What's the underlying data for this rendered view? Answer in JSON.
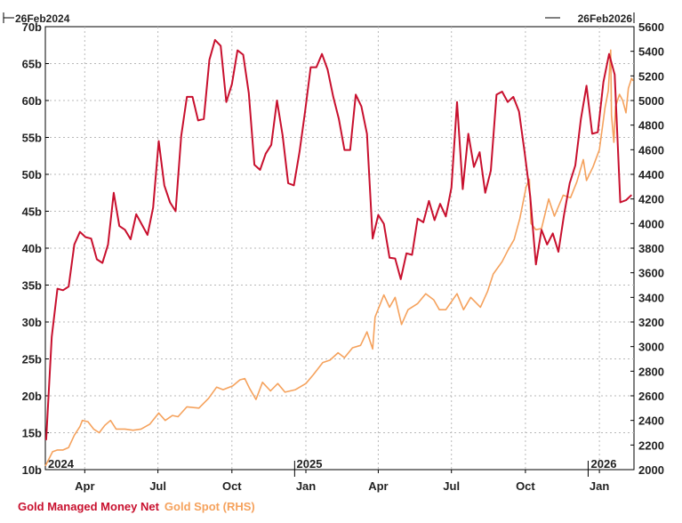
{
  "chart_data": {
    "type": "line",
    "date_range": {
      "start": "26Feb2024",
      "end": "26Feb2026"
    },
    "x_axis": {
      "month_labels": [
        "Apr",
        "Jul",
        "Oct",
        "Jan",
        "Apr",
        "Jul",
        "Oct",
        "Jan"
      ],
      "year_labels": [
        "2024",
        "2025",
        "2026"
      ]
    },
    "y_left": {
      "ticks": [
        "10b",
        "15b",
        "20b",
        "25b",
        "30b",
        "35b",
        "40b",
        "45b",
        "50b",
        "55b",
        "60b",
        "65b",
        "70b"
      ],
      "range": [
        10,
        70
      ],
      "unit": "b"
    },
    "y_right": {
      "ticks": [
        "2000",
        "2200",
        "2400",
        "2600",
        "2800",
        "3000",
        "3200",
        "3400",
        "3600",
        "3800",
        "4000",
        "4200",
        "4400",
        "4600",
        "4800",
        "5000",
        "5200",
        "5400",
        "5600"
      ],
      "range": [
        2000,
        5600
      ]
    },
    "grid": true,
    "legend_placement": "bottom-left",
    "series": [
      {
        "name": "Gold Managed Money Net",
        "axis": "left",
        "color": "#c8102e",
        "points": [
          [
            "2024-02-27",
            14
          ],
          [
            "2024-03-01",
            20
          ],
          [
            "2024-03-05",
            28
          ],
          [
            "2024-03-12",
            34.5
          ],
          [
            "2024-03-19",
            34.3
          ],
          [
            "2024-03-26",
            34.8
          ],
          [
            "2024-04-02",
            40.5
          ],
          [
            "2024-04-09",
            42.2
          ],
          [
            "2024-04-16",
            41.5
          ],
          [
            "2024-04-23",
            41.3
          ],
          [
            "2024-04-30",
            38.5
          ],
          [
            "2024-05-07",
            38
          ],
          [
            "2024-05-14",
            40.5
          ],
          [
            "2024-05-21",
            47.5
          ],
          [
            "2024-05-28",
            43
          ],
          [
            "2024-06-04",
            42.5
          ],
          [
            "2024-06-11",
            41.2
          ],
          [
            "2024-06-18",
            44.6
          ],
          [
            "2024-06-25",
            43.2
          ],
          [
            "2024-07-02",
            41.8
          ],
          [
            "2024-07-09",
            45.5
          ],
          [
            "2024-07-16",
            54.5
          ],
          [
            "2024-07-23",
            48.5
          ],
          [
            "2024-07-30",
            46.2
          ],
          [
            "2024-08-06",
            45
          ],
          [
            "2024-08-13",
            55.2
          ],
          [
            "2024-08-20",
            60.5
          ],
          [
            "2024-08-27",
            60.5
          ],
          [
            "2024-09-03",
            57.3
          ],
          [
            "2024-09-10",
            57.5
          ],
          [
            "2024-09-17",
            65.5
          ],
          [
            "2024-09-24",
            68.2
          ],
          [
            "2024-10-01",
            67.4
          ],
          [
            "2024-10-08",
            59.8
          ],
          [
            "2024-10-15",
            62.2
          ],
          [
            "2024-10-22",
            66.8
          ],
          [
            "2024-10-29",
            66.2
          ],
          [
            "2024-11-05",
            61
          ],
          [
            "2024-11-12",
            51.3
          ],
          [
            "2024-11-19",
            50.6
          ],
          [
            "2024-11-26",
            52.8
          ],
          [
            "2024-12-03",
            54
          ],
          [
            "2024-12-10",
            60
          ],
          [
            "2024-12-17",
            55.3
          ],
          [
            "2024-12-24",
            48.8
          ],
          [
            "2024-12-31",
            48.5
          ],
          [
            "2025-01-07",
            53
          ],
          [
            "2025-01-14",
            58.5
          ],
          [
            "2025-01-21",
            64.5
          ],
          [
            "2025-01-28",
            64.5
          ],
          [
            "2025-02-04",
            66.3
          ],
          [
            "2025-02-11",
            64.2
          ],
          [
            "2025-02-18",
            60.5
          ],
          [
            "2025-02-25",
            57.5
          ],
          [
            "2025-03-04",
            53.3
          ],
          [
            "2025-03-11",
            53.3
          ],
          [
            "2025-03-18",
            60.8
          ],
          [
            "2025-03-25",
            59.2
          ],
          [
            "2025-04-01",
            55.5
          ],
          [
            "2025-04-08",
            41.3
          ],
          [
            "2025-04-15",
            44.5
          ],
          [
            "2025-04-22",
            43.3
          ],
          [
            "2025-04-29",
            38.7
          ],
          [
            "2025-05-06",
            38.6
          ],
          [
            "2025-05-13",
            35.8
          ],
          [
            "2025-05-20",
            39.3
          ],
          [
            "2025-05-27",
            39.1
          ],
          [
            "2025-06-03",
            44
          ],
          [
            "2025-06-10",
            43.5
          ],
          [
            "2025-06-17",
            46.4
          ],
          [
            "2025-06-24",
            43.8
          ],
          [
            "2025-07-01",
            46
          ],
          [
            "2025-07-08",
            44.3
          ],
          [
            "2025-07-15",
            48.2
          ],
          [
            "2025-07-22",
            59.8
          ],
          [
            "2025-07-29",
            48
          ],
          [
            "2025-08-05",
            55.5
          ],
          [
            "2025-08-12",
            51
          ],
          [
            "2025-08-19",
            53
          ],
          [
            "2025-08-26",
            47.5
          ],
          [
            "2025-09-02",
            50.5
          ],
          [
            "2025-09-09",
            60.8
          ],
          [
            "2025-09-16",
            61.2
          ],
          [
            "2025-09-23",
            59.8
          ],
          [
            "2025-09-30",
            60.5
          ],
          [
            "2025-10-07",
            58.5
          ],
          [
            "2025-10-14",
            53
          ],
          [
            "2025-10-21",
            47
          ],
          [
            "2025-10-28",
            37.8
          ],
          [
            "2025-11-04",
            42.5
          ],
          [
            "2025-11-11",
            40.5
          ],
          [
            "2025-11-18",
            42
          ],
          [
            "2025-11-25",
            39.5
          ],
          [
            "2025-12-02",
            44.5
          ],
          [
            "2025-12-09",
            48.8
          ],
          [
            "2025-12-16",
            51.2
          ],
          [
            "2025-12-23",
            57.5
          ],
          [
            "2025-12-30",
            62
          ],
          [
            "2026-01-06",
            55.5
          ],
          [
            "2026-01-13",
            55.7
          ],
          [
            "2026-01-20",
            62.5
          ],
          [
            "2026-01-27",
            66.3
          ],
          [
            "2026-02-03",
            63.5
          ],
          [
            "2026-02-10",
            46.2
          ],
          [
            "2026-02-17",
            46.5
          ],
          [
            "2026-02-24",
            47.2
          ]
        ]
      },
      {
        "name": "Gold Spot (RHS)",
        "axis": "right",
        "color": "#f5a25d",
        "points": [
          [
            "2024-02-26",
            2030
          ],
          [
            "2024-03-01",
            2080
          ],
          [
            "2024-03-06",
            2145
          ],
          [
            "2024-03-12",
            2160
          ],
          [
            "2024-03-19",
            2160
          ],
          [
            "2024-03-26",
            2180
          ],
          [
            "2024-04-02",
            2280
          ],
          [
            "2024-04-09",
            2350
          ],
          [
            "2024-04-12",
            2400
          ],
          [
            "2024-04-19",
            2390
          ],
          [
            "2024-04-26",
            2330
          ],
          [
            "2024-05-03",
            2300
          ],
          [
            "2024-05-10",
            2360
          ],
          [
            "2024-05-17",
            2400
          ],
          [
            "2024-05-24",
            2330
          ],
          [
            "2024-06-04",
            2330
          ],
          [
            "2024-06-14",
            2320
          ],
          [
            "2024-06-24",
            2330
          ],
          [
            "2024-07-05",
            2370
          ],
          [
            "2024-07-16",
            2460
          ],
          [
            "2024-07-24",
            2400
          ],
          [
            "2024-08-02",
            2440
          ],
          [
            "2024-08-09",
            2430
          ],
          [
            "2024-08-20",
            2510
          ],
          [
            "2024-09-04",
            2500
          ],
          [
            "2024-09-16",
            2580
          ],
          [
            "2024-09-26",
            2670
          ],
          [
            "2024-10-04",
            2650
          ],
          [
            "2024-10-16",
            2680
          ],
          [
            "2024-10-25",
            2730
          ],
          [
            "2024-10-31",
            2740
          ],
          [
            "2024-11-06",
            2660
          ],
          [
            "2024-11-14",
            2570
          ],
          [
            "2024-11-22",
            2710
          ],
          [
            "2024-12-02",
            2640
          ],
          [
            "2024-12-11",
            2700
          ],
          [
            "2024-12-20",
            2630
          ],
          [
            "2025-01-02",
            2650
          ],
          [
            "2025-01-15",
            2700
          ],
          [
            "2025-01-24",
            2770
          ],
          [
            "2025-02-05",
            2870
          ],
          [
            "2025-02-14",
            2890
          ],
          [
            "2025-02-24",
            2950
          ],
          [
            "2025-03-04",
            2910
          ],
          [
            "2025-03-14",
            2990
          ],
          [
            "2025-03-24",
            3010
          ],
          [
            "2025-04-01",
            3120
          ],
          [
            "2025-04-08",
            2980
          ],
          [
            "2025-04-11",
            3240
          ],
          [
            "2025-04-22",
            3420
          ],
          [
            "2025-04-29",
            3320
          ],
          [
            "2025-05-06",
            3400
          ],
          [
            "2025-05-14",
            3180
          ],
          [
            "2025-05-22",
            3300
          ],
          [
            "2025-06-03",
            3350
          ],
          [
            "2025-06-13",
            3430
          ],
          [
            "2025-06-23",
            3380
          ],
          [
            "2025-06-30",
            3300
          ],
          [
            "2025-07-08",
            3300
          ],
          [
            "2025-07-22",
            3430
          ],
          [
            "2025-07-30",
            3300
          ],
          [
            "2025-08-08",
            3400
          ],
          [
            "2025-08-20",
            3320
          ],
          [
            "2025-08-29",
            3450
          ],
          [
            "2025-09-05",
            3590
          ],
          [
            "2025-09-16",
            3690
          ],
          [
            "2025-09-23",
            3780
          ],
          [
            "2025-10-01",
            3870
          ],
          [
            "2025-10-08",
            4040
          ],
          [
            "2025-10-16",
            4300
          ],
          [
            "2025-10-20",
            4360
          ],
          [
            "2025-10-22",
            4000
          ],
          [
            "2025-10-28",
            3950
          ],
          [
            "2025-11-04",
            3960
          ],
          [
            "2025-11-13",
            4200
          ],
          [
            "2025-11-20",
            4060
          ],
          [
            "2025-12-01",
            4230
          ],
          [
            "2025-12-10",
            4210
          ],
          [
            "2025-12-18",
            4340
          ],
          [
            "2025-12-26",
            4520
          ],
          [
            "2025-12-30",
            4350
          ],
          [
            "2026-01-07",
            4460
          ],
          [
            "2026-01-15",
            4600
          ],
          [
            "2026-01-22",
            4940
          ],
          [
            "2026-01-26",
            5080
          ],
          [
            "2026-01-28",
            5300
          ],
          [
            "2026-01-29",
            5410
          ],
          [
            "2026-01-30",
            4880
          ],
          [
            "2026-02-02",
            4660
          ],
          [
            "2026-02-04",
            4950
          ],
          [
            "2026-02-09",
            5050
          ],
          [
            "2026-02-13",
            5000
          ],
          [
            "2026-02-17",
            4900
          ],
          [
            "2026-02-20",
            5100
          ],
          [
            "2026-02-24",
            5180
          ],
          [
            "2026-02-26",
            5160
          ]
        ]
      }
    ]
  }
}
